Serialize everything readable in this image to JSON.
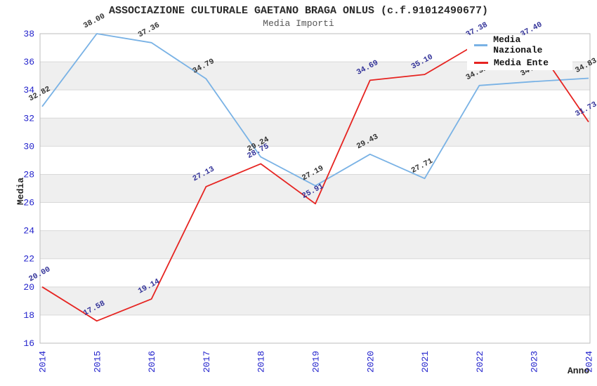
{
  "header": {
    "title": "ASSOCIAZIONE CULTURALE GAETANO BRAGA ONLUS (c.f.91012490677)",
    "subtitle": "Media Importi"
  },
  "axes": {
    "y_title": "Media",
    "x_title": "Anno",
    "y_ticks": [
      "16",
      "18",
      "20",
      "22",
      "24",
      "26",
      "28",
      "30",
      "32",
      "34",
      "36",
      "38"
    ],
    "x_ticks": [
      "2014",
      "2015",
      "2016",
      "2017",
      "2018",
      "2019",
      "2020",
      "2021",
      "2022",
      "2023",
      "2024"
    ],
    "tick_color": "#2222cc"
  },
  "legend": {
    "items": [
      {
        "label": "Media Nazionale",
        "color": "#79b2e5"
      },
      {
        "label": "Media Ente",
        "color": "#e62421"
      }
    ]
  },
  "colors": {
    "band_fill": "#efefef",
    "gridline": "#d9d9d9",
    "frame": "#bdbdbd",
    "background": "#ffffff"
  },
  "chart_data": {
    "type": "line",
    "title": "ASSOCIAZIONE CULTURALE GAETANO BRAGA ONLUS (c.f.91012490677)",
    "subtitle": "Media Importi",
    "xlabel": "Anno",
    "ylabel": "Media",
    "categories": [
      "2014",
      "2015",
      "2016",
      "2017",
      "2018",
      "2019",
      "2020",
      "2021",
      "2022",
      "2023",
      "2024"
    ],
    "series": [
      {
        "name": "Media Nazionale",
        "color": "#79b2e5",
        "label_color": "#333333",
        "values": [
          32.82,
          38.0,
          37.36,
          34.79,
          29.24,
          27.19,
          29.43,
          27.71,
          34.32,
          34.6,
          34.83
        ],
        "labels": [
          "32.82",
          "38.00",
          "37.36",
          "34.79",
          "29.24",
          "27.19",
          "29.43",
          "27.71",
          "34.32",
          "34.60",
          "34.83"
        ]
      },
      {
        "name": "Media Ente",
        "color": "#e62421",
        "label_color": "#333399",
        "values": [
          20.0,
          17.58,
          19.14,
          27.13,
          28.75,
          25.91,
          34.69,
          35.1,
          37.38,
          37.4,
          31.73
        ],
        "labels": [
          "20.00",
          "17.58",
          "19.14",
          "27.13",
          "28.75",
          "25.91",
          "34.69",
          "35.10",
          "37.38",
          "37.40",
          "31.73"
        ]
      }
    ],
    "ylim": [
      16,
      38
    ],
    "ytick_step": 2,
    "grid": "horizontal-bands",
    "legend_position": "top-right"
  }
}
